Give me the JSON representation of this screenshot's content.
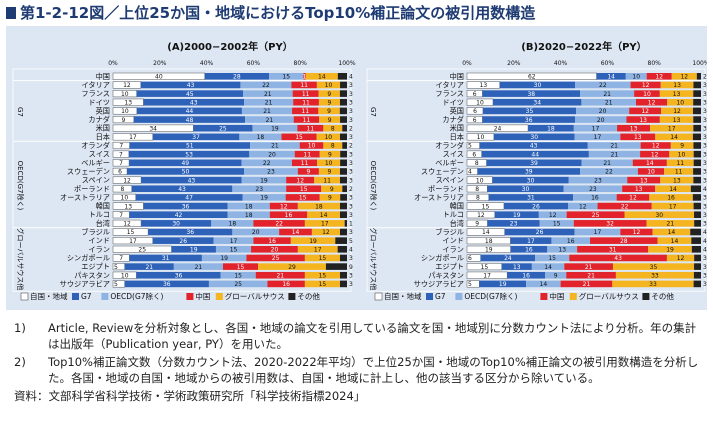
{
  "title": "第1-2-12図／上位25か国・地域におけるTop10%補正論文の被引用数構造",
  "colors": {
    "self": "#ffffff",
    "g7": "#2e62b8",
    "oecd": "#8fb4e3",
    "china": "#e2232b",
    "global_south": "#f5b520",
    "other": "#222222"
  },
  "legend": [
    "自国・地域",
    "G7",
    "OECD(G7除く)",
    "中国",
    "グローバルサウス",
    "その他"
  ],
  "group_labels": [
    "G7",
    "OECD(G7除く)",
    "グローバルサウス他"
  ],
  "chart_data": [
    {
      "type": "bar",
      "title": "(A)2000−2002年（PY）",
      "xticks": [
        "0%",
        "20%",
        "40%",
        "60%",
        "80%",
        "100%"
      ],
      "categories": [
        "中国",
        "イタリア",
        "フランス",
        "ドイツ",
        "英国",
        "カナダ",
        "米国",
        "日本",
        "オランダ",
        "スイス",
        "ベルギー",
        "スウェーデン",
        "スペイン",
        "ポーランド",
        "オーストラリア",
        "韓国",
        "トルコ",
        "台湾",
        "ブラジル",
        "インド",
        "イラン",
        "シンガポール",
        "エジプト",
        "パキスタン",
        "サウジアラビア"
      ],
      "groups": [
        1,
        7,
        8,
        8,
        8,
        8,
        8,
        8,
        8,
        8,
        8,
        8,
        8,
        8,
        8,
        8,
        8,
        8,
        8,
        8,
        8,
        8,
        8,
        8,
        8
      ],
      "rows": [
        [
          40,
          28,
          15,
          1,
          14,
          4
        ],
        [
          12,
          43,
          22,
          11,
          10,
          3
        ],
        [
          10,
          45,
          21,
          11,
          9,
          3
        ],
        [
          13,
          43,
          21,
          11,
          9,
          3
        ],
        [
          10,
          44,
          21,
          11,
          9,
          3
        ],
        [
          9,
          48,
          21,
          11,
          9,
          3
        ],
        [
          34,
          25,
          19,
          11,
          8,
          2
        ],
        [
          17,
          37,
          18,
          15,
          10,
          3
        ],
        [
          7,
          51,
          21,
          10,
          8,
          2
        ],
        [
          7,
          53,
          20,
          11,
          9,
          3
        ],
        [
          7,
          49,
          22,
          11,
          10,
          3
        ],
        [
          6,
          50,
          23,
          9,
          9,
          3
        ],
        [
          12,
          43,
          19,
          12,
          11,
          3
        ],
        [
          8,
          43,
          23,
          15,
          9,
          2
        ],
        [
          10,
          47,
          19,
          15,
          9,
          3
        ],
        [
          13,
          36,
          18,
          12,
          18,
          3
        ],
        [
          7,
          42,
          18,
          16,
          14,
          3
        ],
        [
          12,
          30,
          18,
          22,
          17,
          1
        ],
        [
          15,
          36,
          20,
          14,
          12,
          3
        ],
        [
          17,
          26,
          17,
          16,
          19,
          5
        ],
        [
          25,
          19,
          15,
          20,
          17,
          4
        ],
        [
          7,
          31,
          19,
          25,
          15,
          3
        ],
        [
          5,
          21,
          21,
          15,
          29,
          9
        ],
        [
          10,
          36,
          15,
          21,
          15,
          3
        ],
        [
          5,
          36,
          25,
          16,
          15,
          3
        ]
      ]
    },
    {
      "type": "bar",
      "title": "(B)2020−2022年（PY）",
      "xticks": [
        "0%",
        "20%",
        "40%",
        "60%",
        "80%",
        "100%"
      ],
      "categories": [
        "中国",
        "イタリア",
        "フランス",
        "ドイツ",
        "英国",
        "カナダ",
        "米国",
        "日本",
        "オランダ",
        "スイス",
        "ベルギー",
        "スウェーデン",
        "スペイン",
        "ポーランド",
        "オーストラリア",
        "韓国",
        "トルコ",
        "台湾",
        "ブラジル",
        "インド",
        "イラン",
        "シンガポール",
        "エジプト",
        "パキスタン",
        "サウジアラビア"
      ],
      "groups": [
        1,
        7,
        8,
        8,
        8,
        8,
        8,
        8,
        8,
        8,
        8,
        8,
        8,
        8,
        8,
        8,
        8,
        8,
        8,
        8,
        8,
        8,
        8,
        8,
        8
      ],
      "rows": [
        [
          62,
          14,
          10,
          12,
          12,
          2
        ],
        [
          13,
          30,
          22,
          12,
          13,
          3
        ],
        [
          6,
          38,
          21,
          10,
          13,
          3
        ],
        [
          10,
          34,
          21,
          12,
          10,
          3
        ],
        [
          6,
          35,
          20,
          12,
          12,
          3
        ],
        [
          6,
          36,
          20,
          13,
          13,
          3
        ],
        [
          24,
          18,
          17,
          13,
          17,
          3
        ],
        [
          10,
          30,
          17,
          13,
          14,
          3
        ],
        [
          5,
          43,
          21,
          12,
          9,
          3
        ],
        [
          6,
          44,
          21,
          12,
          10,
          3
        ],
        [
          8,
          39,
          21,
          14,
          11,
          3
        ],
        [
          4,
          39,
          22,
          10,
          11,
          3
        ],
        [
          10,
          30,
          23,
          13,
          13,
          3
        ],
        [
          8,
          30,
          23,
          13,
          14,
          4
        ],
        [
          8,
          31,
          16,
          12,
          16,
          3
        ],
        [
          15,
          26,
          12,
          22,
          17,
          3
        ],
        [
          12,
          19,
          12,
          25,
          30,
          3
        ],
        [
          9,
          23,
          15,
          32,
          21,
          3
        ],
        [
          14,
          26,
          17,
          12,
          14,
          4
        ],
        [
          18,
          17,
          16,
          28,
          14,
          4
        ],
        [
          19,
          16,
          13,
          31,
          19,
          4
        ],
        [
          6,
          24,
          15,
          43,
          12,
          3
        ],
        [
          15,
          13,
          14,
          21,
          35,
          3
        ],
        [
          17,
          16,
          9,
          21,
          33,
          3
        ],
        [
          5,
          19,
          14,
          21,
          33,
          3
        ]
      ]
    }
  ],
  "notes": [
    {
      "num": "1)",
      "text": "Article, Reviewを分析対象とし、各国・地域の論文を引用している論文を国・地域別に分数カウント法により分析。年の集計は出版年（Publication year, PY）を用いた。"
    },
    {
      "num": "2)",
      "text": "Top10%補正論文数（分数カウント法、2020-2022年平均）で上位25か国・地域のTop10%補正論文の被引用数構造を分析した。各国・地域の自国・地域からの被引用数は、自国・地域に計上し、他の該当する区分から除いている。"
    }
  ],
  "source": "資料：文部科学省科学技術・学術政策研究所「科学技術指標2024」"
}
